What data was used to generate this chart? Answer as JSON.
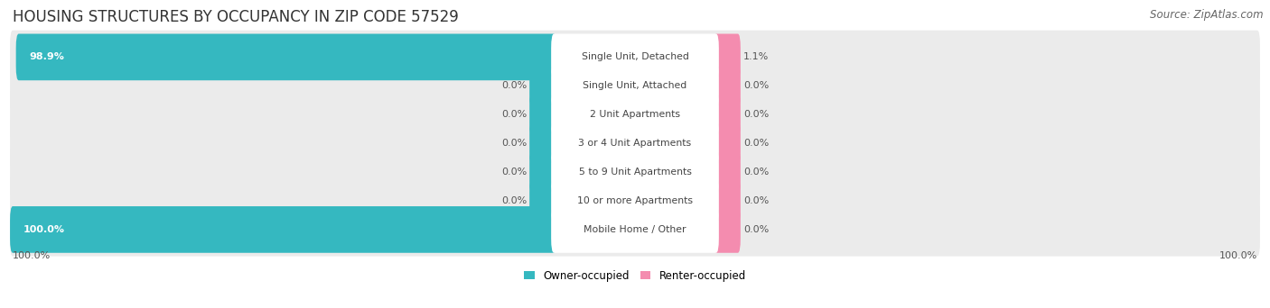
{
  "title": "HOUSING STRUCTURES BY OCCUPANCY IN ZIP CODE 57529",
  "source": "Source: ZipAtlas.com",
  "categories": [
    "Single Unit, Detached",
    "Single Unit, Attached",
    "2 Unit Apartments",
    "3 or 4 Unit Apartments",
    "5 to 9 Unit Apartments",
    "10 or more Apartments",
    "Mobile Home / Other"
  ],
  "owner_pct": [
    98.9,
    0.0,
    0.0,
    0.0,
    0.0,
    0.0,
    100.0
  ],
  "renter_pct": [
    1.1,
    0.0,
    0.0,
    0.0,
    0.0,
    0.0,
    0.0
  ],
  "owner_color": "#35b8c0",
  "renter_color": "#f48caf",
  "row_bg_color": "#ebebeb",
  "title_fontsize": 12,
  "source_fontsize": 8.5,
  "background_color": "#ffffff",
  "max_val": 100.0,
  "tick_label_left": "100.0%",
  "tick_label_right": "100.0%",
  "min_stub": 4.0
}
